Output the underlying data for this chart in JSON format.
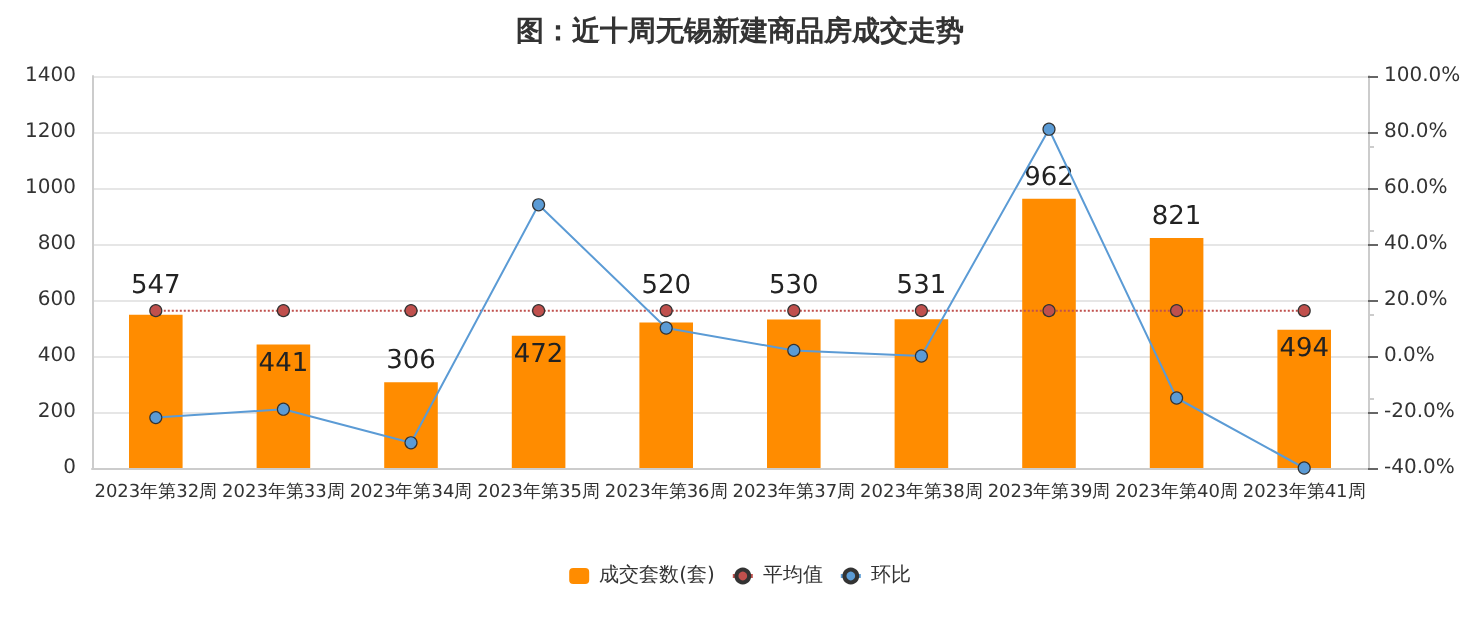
{
  "chart_data": {
    "type": "bar",
    "title": "图：近十周无锡新建商品房成交走势",
    "categories": [
      "2023年第32周",
      "2023年第33周",
      "2023年第34周",
      "2023年第35周",
      "2023年第36周",
      "2023年第37周",
      "2023年第38周",
      "2023年第39周",
      "2023年第40周",
      "2023年第41周"
    ],
    "series": [
      {
        "name": "成交套数(套)",
        "color": "#ff8c00",
        "values": [
          547,
          441,
          306,
          472,
          520,
          530,
          531,
          962,
          821,
          494
        ],
        "data_labels": true
      },
      {
        "name": "平均值",
        "type": "line",
        "color": "#c0504d",
        "line_style": "dotted",
        "marker": "circle",
        "values": [
          562,
          562,
          562,
          562,
          562,
          562,
          562,
          562,
          562,
          562
        ]
      },
      {
        "name": "环比",
        "type": "line",
        "color": "#5b9bd5",
        "line_style": "solid",
        "marker": "circle",
        "axis": "y2",
        "values": [
          -22,
          -19,
          -31,
          54,
          10,
          2,
          0,
          81,
          -15,
          -40
        ]
      }
    ],
    "ylim": [
      0,
      1400
    ],
    "yticks": [
      0,
      200,
      400,
      600,
      800,
      1000,
      1200,
      1400
    ],
    "y2lim": [
      -40,
      100
    ],
    "y2ticks": [
      {
        "value": -40,
        "label": "-40.0%"
      },
      {
        "value": -20,
        "label": "-20.0%"
      },
      {
        "value": 0,
        "label": "0.0%"
      },
      {
        "value": 20,
        "label": "20.0%"
      },
      {
        "value": 40,
        "label": "40.0%"
      },
      {
        "value": 60,
        "label": "60.0%"
      },
      {
        "value": 80,
        "label": "80.0%"
      },
      {
        "value": 100,
        "label": "100.0%"
      }
    ],
    "grid": "y",
    "legend": "bottom"
  }
}
